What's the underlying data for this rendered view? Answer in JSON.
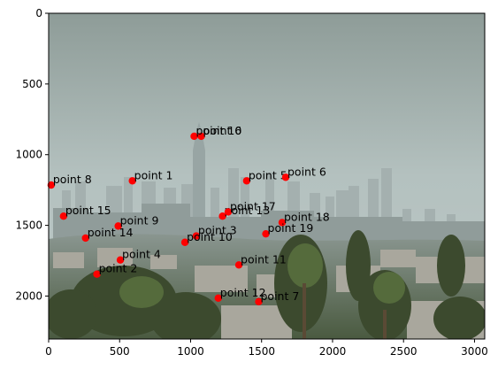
{
  "chart_data": {
    "type": "scatter",
    "background": "city-skyline-photo",
    "xlim": [
      0,
      3072
    ],
    "ylim": [
      2304,
      0
    ],
    "xticks": [
      0,
      500,
      1000,
      1500,
      2000,
      2500,
      3000
    ],
    "yticks": [
      0,
      500,
      1000,
      1500,
      2000
    ],
    "marker_color": "#ff0000",
    "points": [
      {
        "label": "point 0",
        "x": 1075,
        "y": 870
      },
      {
        "label": "point 1",
        "x": 590,
        "y": 1185
      },
      {
        "label": "point 2",
        "x": 340,
        "y": 1845
      },
      {
        "label": "point 3",
        "x": 1040,
        "y": 1575
      },
      {
        "label": "point 4",
        "x": 505,
        "y": 1745
      },
      {
        "label": "point 5",
        "x": 1395,
        "y": 1185
      },
      {
        "label": "point 6",
        "x": 1670,
        "y": 1160
      },
      {
        "label": "point 7",
        "x": 1480,
        "y": 2040
      },
      {
        "label": "point 8",
        "x": 18,
        "y": 1215
      },
      {
        "label": "point 9",
        "x": 490,
        "y": 1505
      },
      {
        "label": "point 10",
        "x": 960,
        "y": 1620
      },
      {
        "label": "point 11",
        "x": 1340,
        "y": 1780
      },
      {
        "label": "point 12",
        "x": 1195,
        "y": 2015
      },
      {
        "label": "point 13",
        "x": 1225,
        "y": 1435
      },
      {
        "label": "point 14",
        "x": 260,
        "y": 1590
      },
      {
        "label": "point 15",
        "x": 105,
        "y": 1435
      },
      {
        "label": "point 16",
        "x": 1025,
        "y": 870
      },
      {
        "label": "point 17",
        "x": 1265,
        "y": 1405
      },
      {
        "label": "point 18",
        "x": 1645,
        "y": 1480
      },
      {
        "label": "point 19",
        "x": 1530,
        "y": 1560
      }
    ]
  }
}
